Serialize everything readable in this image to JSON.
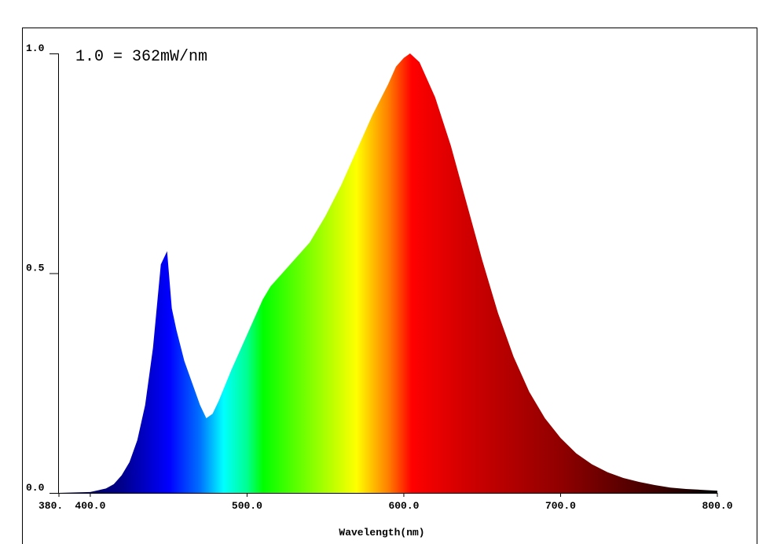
{
  "chart_data": {
    "type": "area",
    "annotation": "1.0 = 362mW/nm",
    "x_label": "Wavelength(nm)",
    "x": [
      380,
      400,
      410,
      415,
      420,
      425,
      430,
      435,
      440,
      445,
      449,
      452,
      455,
      460,
      465,
      470,
      474,
      478,
      482,
      490,
      500,
      510,
      515,
      520,
      530,
      540,
      550,
      560,
      570,
      580,
      590,
      595,
      600,
      604,
      610,
      620,
      630,
      640,
      650,
      660,
      670,
      680,
      690,
      700,
      710,
      720,
      730,
      740,
      750,
      760,
      770,
      780,
      790,
      800
    ],
    "values": [
      0,
      0.002,
      0.01,
      0.02,
      0.04,
      0.07,
      0.12,
      0.2,
      0.33,
      0.52,
      0.55,
      0.42,
      0.37,
      0.3,
      0.25,
      0.2,
      0.17,
      0.18,
      0.21,
      0.28,
      0.36,
      0.44,
      0.47,
      0.49,
      0.53,
      0.57,
      0.63,
      0.7,
      0.78,
      0.86,
      0.93,
      0.97,
      0.99,
      1.0,
      0.98,
      0.9,
      0.79,
      0.66,
      0.53,
      0.41,
      0.31,
      0.23,
      0.17,
      0.125,
      0.09,
      0.065,
      0.047,
      0.034,
      0.025,
      0.018,
      0.012,
      0.009,
      0.007,
      0.005
    ],
    "xlim": [
      380,
      800
    ],
    "ylim": [
      0,
      1
    ],
    "xticks": [
      {
        "value": 380,
        "label": "380."
      },
      {
        "value": 400,
        "label": "400.0"
      },
      {
        "value": 500,
        "label": "500.0"
      },
      {
        "value": 600,
        "label": "600.0"
      },
      {
        "value": 700,
        "label": "700.0"
      },
      {
        "value": 800,
        "label": "800.0"
      }
    ],
    "yticks": [
      {
        "value": 0,
        "label": "0.0"
      },
      {
        "value": 0.5,
        "label": "0.5"
      },
      {
        "value": 1,
        "label": "1.0"
      }
    ],
    "grid": false
  }
}
